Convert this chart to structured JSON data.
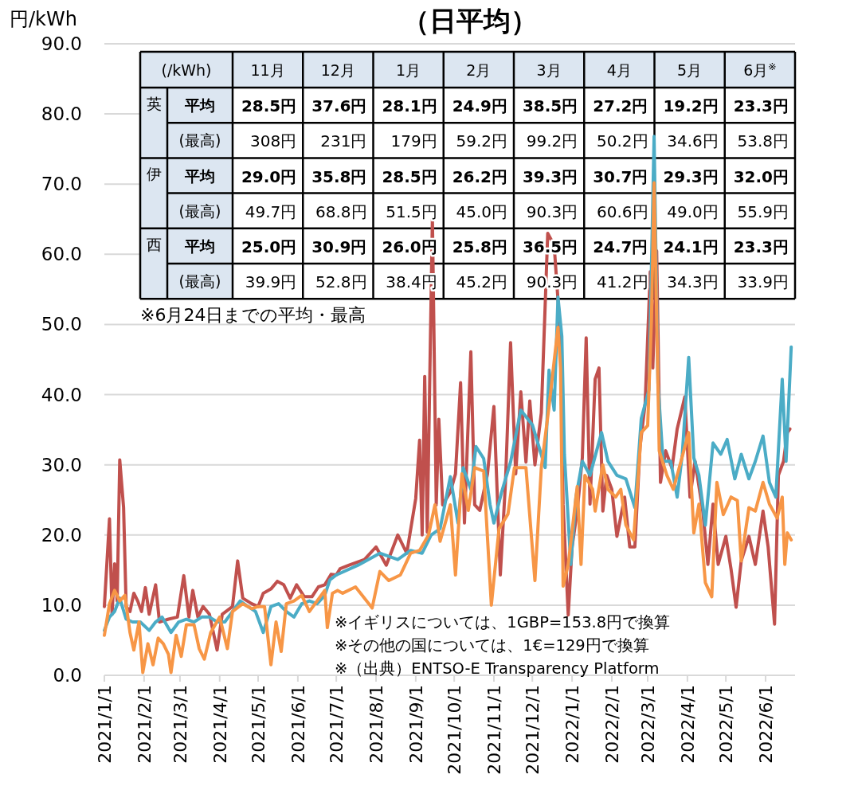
{
  "chart_data": [
    {
      "type": "line",
      "title": "（日平均）",
      "ylabel": "円/kWh",
      "xlim": [
        "2021-01-01",
        "2022-06-24"
      ],
      "xticks": [
        {
          "value": "2021-01-01",
          "label": "2021/1/1"
        },
        {
          "value": "2021-02-01",
          "label": "2021/2/1"
        },
        {
          "value": "2021-03-01",
          "label": "2021/3/1"
        },
        {
          "value": "2021-04-01",
          "label": "2021/4/1"
        },
        {
          "value": "2021-05-01",
          "label": "2021/5/1"
        },
        {
          "value": "2021-06-01",
          "label": "2021/6/1"
        },
        {
          "value": "2021-07-01",
          "label": "2021/7/1"
        },
        {
          "value": "2021-08-01",
          "label": "2021/8/1"
        },
        {
          "value": "2021-09-01",
          "label": "2021/9/1"
        },
        {
          "value": "2021-10-01",
          "label": "2021/10/1"
        },
        {
          "value": "2021-11-01",
          "label": "2021/11/1"
        },
        {
          "value": "2021-12-01",
          "label": "2021/12/1"
        },
        {
          "value": "2022-01-01",
          "label": "2022/1/1"
        },
        {
          "value": "2022-02-01",
          "label": "2022/2/1"
        },
        {
          "value": "2022-03-01",
          "label": "2022/3/1"
        },
        {
          "value": "2022-04-01",
          "label": "2022/4/1"
        },
        {
          "value": "2022-05-01",
          "label": "2022/5/1"
        },
        {
          "value": "2022-06-01",
          "label": "2022/6/1"
        }
      ],
      "ylim": [
        0,
        90
      ],
      "yticks": [
        {
          "value": 0,
          "label": "0.0"
        },
        {
          "value": 10,
          "label": "10.0"
        },
        {
          "value": 20,
          "label": "20.0"
        },
        {
          "value": 30,
          "label": "30.0"
        },
        {
          "value": 40,
          "label": "40.0"
        },
        {
          "value": 50,
          "label": "50.0"
        },
        {
          "value": 60,
          "label": "60.0"
        },
        {
          "value": 70,
          "label": "70.0"
        },
        {
          "value": 80,
          "label": "80.0"
        },
        {
          "value": 90,
          "label": "90.0"
        }
      ],
      "grid": "y",
      "marker": "none",
      "line_style": "solid",
      "series": [
        {
          "color": "#c0504d",
          "x": [
            "2021-01-01",
            "2021-01-05",
            "2021-01-07",
            "2021-01-09",
            "2021-01-11",
            "2021-01-13",
            "2021-01-16",
            "2021-01-18",
            "2021-01-21",
            "2021-01-24",
            "2021-01-27",
            "2021-01-30",
            "2021-02-02",
            "2021-02-05",
            "2021-02-10",
            "2021-02-13",
            "2021-02-20",
            "2021-02-27",
            "2021-03-04",
            "2021-03-08",
            "2021-03-11",
            "2021-03-15",
            "2021-03-19",
            "2021-03-24",
            "2021-03-30",
            "2021-04-03",
            "2021-04-11",
            "2021-04-15",
            "2021-04-19",
            "2021-04-26",
            "2021-05-01",
            "2021-05-05",
            "2021-05-11",
            "2021-05-16",
            "2021-05-21",
            "2021-05-26",
            "2021-05-31",
            "2021-06-06",
            "2021-06-12",
            "2021-06-17",
            "2021-06-22",
            "2021-06-27",
            "2021-07-01",
            "2021-07-04",
            "2021-07-11",
            "2021-07-23",
            "2021-08-01",
            "2021-08-09",
            "2021-08-18",
            "2021-08-25",
            "2021-09-01",
            "2021-09-04",
            "2021-09-06",
            "2021-09-08",
            "2021-09-10",
            "2021-09-14",
            "2021-09-17",
            "2021-09-19",
            "2021-09-22",
            "2021-09-28",
            "2021-10-02",
            "2021-10-06",
            "2021-10-09",
            "2021-10-14",
            "2021-10-17",
            "2021-10-21",
            "2021-10-27",
            "2021-11-01",
            "2021-11-06",
            "2021-11-10",
            "2021-11-14",
            "2021-11-18",
            "2021-11-22",
            "2021-11-26",
            "2021-11-29",
            "2021-12-03",
            "2021-12-08",
            "2021-12-13",
            "2021-12-18",
            "2021-12-23",
            "2021-12-25",
            "2021-12-29",
            "2022-01-01",
            "2022-01-05",
            "2022-01-09",
            "2022-01-12",
            "2022-01-15",
            "2022-01-19",
            "2022-01-22",
            "2022-01-25",
            "2022-01-28",
            "2022-02-01",
            "2022-02-05",
            "2022-02-11",
            "2022-02-15",
            "2022-02-19",
            "2022-02-23",
            "2022-02-27",
            "2022-03-03",
            "2022-03-05",
            "2022-03-08",
            "2022-03-11",
            "2022-03-15",
            "2022-03-20",
            "2022-03-24",
            "2022-03-30",
            "2022-04-03",
            "2022-04-07",
            "2022-04-13",
            "2022-04-17",
            "2022-04-21",
            "2022-04-25",
            "2022-05-01",
            "2022-05-05",
            "2022-05-09",
            "2022-05-13",
            "2022-05-19",
            "2022-05-24",
            "2022-05-30",
            "2022-06-03",
            "2022-06-08",
            "2022-06-11",
            "2022-06-15",
            "2022-06-18",
            "2022-06-20"
          ],
          "values": [
            9.8,
            22.3,
            8.7,
            15.9,
            10.6,
            30.7,
            23.9,
            9.8,
            9.1,
            11.7,
            10.6,
            9.1,
            12.5,
            8.7,
            12.9,
            7.6,
            8.0,
            8.3,
            14.2,
            8.3,
            12.1,
            8.3,
            9.8,
            8.7,
            3.6,
            8.7,
            9.8,
            16.3,
            11.0,
            10.2,
            9.8,
            11.7,
            12.3,
            13.4,
            12.9,
            11.0,
            12.9,
            11.2,
            11.2,
            12.6,
            12.9,
            14.4,
            14.3,
            15.2,
            15.7,
            16.5,
            18.3,
            15.7,
            20.0,
            17.4,
            25.2,
            33.5,
            20.0,
            42.6,
            20.4,
            65.2,
            24.3,
            36.5,
            24.3,
            26.1,
            28.7,
            41.7,
            21.7,
            46.1,
            24.3,
            23.5,
            28.7,
            38.3,
            14.3,
            27.4,
            47.4,
            28.7,
            40.4,
            30.4,
            39.1,
            30.0,
            37.4,
            63.0,
            61.3,
            48.3,
            24.3,
            8.6,
            18.3,
            23.4,
            31.0,
            48.1,
            24.4,
            42.2,
            43.8,
            23.4,
            28.5,
            26.5,
            19.8,
            25.4,
            18.3,
            18.3,
            32.5,
            38.7,
            57.5,
            43.8,
            60.5,
            27.5,
            32.0,
            29.5,
            35.1,
            39.7,
            25.4,
            30.5,
            23.4,
            15.8,
            24.4,
            15.8,
            19.8,
            15.2,
            9.7,
            16.3,
            19.8,
            15.8,
            23.4,
            18.3,
            7.3,
            28.5,
            30.5,
            34.6,
            35.1
          ]
        },
        {
          "color": "#4bacc6",
          "x": [
            "2021-01-01",
            "2021-01-05",
            "2021-01-09",
            "2021-01-13",
            "2021-01-18",
            "2021-01-23",
            "2021-01-29",
            "2021-02-05",
            "2021-02-10",
            "2021-02-15",
            "2021-02-22",
            "2021-02-28",
            "2021-03-06",
            "2021-03-12",
            "2021-03-18",
            "2021-03-24",
            "2021-03-30",
            "2021-04-05",
            "2021-04-11",
            "2021-04-17",
            "2021-04-23",
            "2021-04-29",
            "2021-05-05",
            "2021-05-11",
            "2021-05-17",
            "2021-05-23",
            "2021-05-29",
            "2021-06-04",
            "2021-06-10",
            "2021-06-16",
            "2021-06-22",
            "2021-06-26",
            "2021-07-01",
            "2021-07-18",
            "2021-08-04",
            "2021-08-18",
            "2021-08-28",
            "2021-09-06",
            "2021-09-13",
            "2021-09-20",
            "2021-09-28",
            "2021-10-04",
            "2021-10-08",
            "2021-10-14",
            "2021-10-18",
            "2021-10-24",
            "2021-10-29",
            "2021-11-01",
            "2021-11-07",
            "2021-11-14",
            "2021-11-22",
            "2021-12-01",
            "2021-12-11",
            "2021-12-14",
            "2021-12-18",
            "2021-12-21",
            "2021-12-24",
            "2021-12-26",
            "2021-12-31",
            "2022-01-04",
            "2022-01-09",
            "2022-01-15",
            "2022-01-24",
            "2022-01-29",
            "2022-02-05",
            "2022-02-12",
            "2022-02-19",
            "2022-02-24",
            "2022-03-02",
            "2022-03-06",
            "2022-03-09",
            "2022-03-13",
            "2022-03-19",
            "2022-03-24",
            "2022-03-28",
            "2022-04-02",
            "2022-04-06",
            "2022-04-10",
            "2022-04-15",
            "2022-04-21",
            "2022-04-27",
            "2022-05-02",
            "2022-05-08",
            "2022-05-13",
            "2022-05-19",
            "2022-05-24",
            "2022-05-30",
            "2022-06-04",
            "2022-06-09",
            "2022-06-14",
            "2022-06-17",
            "2022-06-21"
          ],
          "values": [
            6.4,
            8.3,
            9.1,
            11.0,
            8.0,
            7.6,
            7.6,
            6.4,
            7.6,
            8.3,
            6.1,
            7.6,
            8.0,
            7.6,
            8.3,
            8.3,
            7.6,
            7.6,
            9.1,
            10.6,
            9.8,
            9.1,
            6.1,
            9.8,
            10.2,
            9.1,
            8.3,
            10.2,
            10.6,
            10.2,
            11.4,
            13.6,
            14.3,
            15.7,
            17.4,
            16.5,
            17.8,
            17.4,
            20.0,
            20.9,
            28.3,
            21.7,
            29.6,
            26.5,
            32.6,
            30.9,
            24.3,
            21.7,
            26.1,
            30.4,
            37.8,
            35.7,
            29.6,
            43.5,
            37.8,
            53.9,
            48.3,
            31.5,
            15.8,
            25.4,
            30.5,
            28.5,
            34.6,
            30.5,
            28.5,
            28.0,
            23.9,
            36.6,
            40.7,
            76.8,
            41.7,
            30.5,
            30.5,
            25.4,
            31.5,
            45.3,
            31.0,
            28.5,
            21.4,
            33.1,
            31.5,
            33.6,
            28.0,
            31.5,
            28.0,
            30.5,
            34.1,
            27.5,
            25.4,
            42.2,
            30.5,
            46.8
          ]
        },
        {
          "color": "#f79646",
          "x": [
            "2021-01-01",
            "2021-01-05",
            "2021-01-09",
            "2021-01-13",
            "2021-01-17",
            "2021-01-21",
            "2021-01-24",
            "2021-01-28",
            "2021-01-31",
            "2021-02-04",
            "2021-02-08",
            "2021-02-12",
            "2021-02-16",
            "2021-02-20",
            "2021-02-22",
            "2021-02-26",
            "2021-03-02",
            "2021-03-06",
            "2021-03-12",
            "2021-03-16",
            "2021-03-20",
            "2021-03-25",
            "2021-04-01",
            "2021-04-07",
            "2021-04-11",
            "2021-04-19",
            "2021-04-26",
            "2021-05-01",
            "2021-05-06",
            "2021-05-11",
            "2021-05-15",
            "2021-05-19",
            "2021-05-23",
            "2021-05-29",
            "2021-06-04",
            "2021-06-10",
            "2021-06-16",
            "2021-06-22",
            "2021-06-24",
            "2021-06-28",
            "2021-07-02",
            "2021-07-06",
            "2021-07-16",
            "2021-07-29",
            "2021-08-04",
            "2021-08-11",
            "2021-08-20",
            "2021-08-28",
            "2021-09-04",
            "2021-09-11",
            "2021-09-16",
            "2021-09-20",
            "2021-09-28",
            "2021-10-02",
            "2021-10-07",
            "2021-10-12",
            "2021-10-17",
            "2021-10-24",
            "2021-10-30",
            "2021-11-05",
            "2021-11-12",
            "2021-11-17",
            "2021-11-26",
            "2021-12-03",
            "2021-12-08",
            "2021-12-14",
            "2021-12-21",
            "2021-12-23",
            "2021-12-25",
            "2021-12-29",
            "2022-01-05",
            "2022-01-08",
            "2022-01-11",
            "2022-01-17",
            "2022-01-19",
            "2022-01-25",
            "2022-01-29",
            "2022-02-04",
            "2022-02-08",
            "2022-02-12",
            "2022-02-18",
            "2022-02-24",
            "2022-03-01",
            "2022-03-04",
            "2022-03-06",
            "2022-03-10",
            "2022-03-16",
            "2022-03-21",
            "2022-03-27",
            "2022-04-02",
            "2022-04-06",
            "2022-04-10",
            "2022-04-15",
            "2022-04-20",
            "2022-04-24",
            "2022-04-29",
            "2022-05-05",
            "2022-05-10",
            "2022-05-13",
            "2022-05-19",
            "2022-05-24",
            "2022-05-30",
            "2022-06-04",
            "2022-06-10",
            "2022-06-14",
            "2022-06-16",
            "2022-06-18",
            "2022-06-21"
          ],
          "values": [
            5.7,
            10.2,
            12.1,
            10.6,
            11.4,
            6.1,
            3.6,
            7.6,
            0.4,
            4.5,
            1.5,
            5.3,
            4.5,
            3.0,
            0.4,
            5.7,
            2.7,
            7.2,
            7.2,
            3.8,
            2.3,
            6.1,
            8.3,
            3.8,
            9.1,
            10.2,
            9.5,
            9.8,
            9.8,
            1.5,
            7.6,
            3.4,
            10.2,
            10.6,
            11.4,
            9.1,
            10.6,
            12.1,
            6.8,
            11.7,
            12.1,
            11.7,
            12.6,
            9.6,
            14.8,
            13.5,
            14.3,
            17.4,
            17.8,
            20.0,
            24.3,
            19.1,
            24.3,
            14.3,
            28.7,
            23.5,
            29.6,
            29.1,
            10.0,
            20.9,
            23.0,
            29.6,
            29.6,
            13.5,
            29.6,
            38.3,
            49.6,
            43.7,
            12.7,
            15.8,
            26.9,
            15.8,
            28.5,
            26.5,
            23.4,
            30.0,
            26.5,
            25.4,
            26.5,
            21.4,
            19.3,
            34.6,
            35.6,
            50.9,
            70.2,
            32.0,
            28.5,
            26.5,
            30.5,
            34.6,
            20.3,
            24.4,
            13.2,
            11.2,
            27.5,
            22.9,
            25.4,
            24.9,
            16.3,
            23.9,
            23.4,
            27.5,
            24.4,
            22.4,
            25.4,
            15.8,
            20.3,
            19.3
          ]
        }
      ],
      "annotations": [
        "※イギリスについては、1GBP=153.8円で換算",
        "※その他の国については、1€=129円で換算",
        "※（出典）ENTSO-E Transparency Platform"
      ]
    },
    {
      "type": "heatmap",
      "ylabel": "(/kWh)",
      "categories": [
        "11月",
        "12月",
        "1月",
        "2月",
        "3月",
        "4月",
        "5月",
        "6月$^{※}$"
      ],
      "y_categories": [
        "平均",
        "(最高)",
        "平均",
        "(最高)",
        "平均",
        "(最高)"
      ],
      "y2_categories": [
        "英",
        null,
        "伊",
        null,
        "西",
        null
      ],
      "cells": [
        [
          28.5,
          37.6,
          28.1,
          24.9,
          38.5,
          27.2,
          19.2,
          23.3
        ],
        [
          308,
          231,
          179,
          59.2,
          99.2,
          50.2,
          34.6,
          53.8
        ],
        [
          29.0,
          35.8,
          28.5,
          26.2,
          39.3,
          30.7,
          29.3,
          32.0
        ],
        [
          49.7,
          68.8,
          51.5,
          45.0,
          90.3,
          60.6,
          49.0,
          55.9
        ],
        [
          25.0,
          30.9,
          26.0,
          25.8,
          36.5,
          24.7,
          24.1,
          23.3
        ],
        [
          39.9,
          52.8,
          38.4,
          45.2,
          90.3,
          41.2,
          34.3,
          33.9
        ]
      ],
      "cell_labels": [
        [
          "28.5円",
          "37.6円",
          "28.1円",
          "24.9円",
          "38.5円",
          "27.2円",
          "19.2円",
          "23.3円"
        ],
        [
          "308円",
          "231円",
          "179円",
          "59.2円",
          "99.2円",
          "50.2円",
          "34.6円",
          "53.8円"
        ],
        [
          "29.0円",
          "35.8円",
          "28.5円",
          "26.2円",
          "39.3円",
          "30.7円",
          "29.3円",
          "32.0円"
        ],
        [
          "49.7円",
          "68.8円",
          "51.5円",
          "45.0円",
          "90.3円",
          "60.6円",
          "49.0円",
          "55.9円"
        ],
        [
          "25.0円",
          "30.9円",
          "26.0円",
          "25.8円",
          "36.5円",
          "24.7円",
          "24.1円",
          "23.3円"
        ],
        [
          "39.9円",
          "52.8円",
          "38.4円",
          "45.2円",
          "90.3円",
          "41.2円",
          "34.3円",
          "33.9円"
        ]
      ],
      "annotations": [
        "※6月24日までの平均・最高"
      ]
    }
  ]
}
